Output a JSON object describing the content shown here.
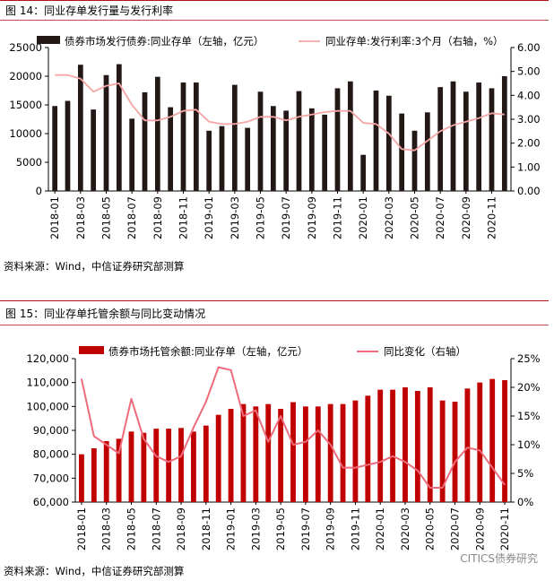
{
  "figure14": {
    "title": "图 14：同业存单发行量与发行利率",
    "source": "资料来源：Wind，中信证券研究部测算"
  },
  "figure15": {
    "title": "图 15：同业存单托管余额与同比变动情况",
    "source": "资料来源：Wind，中信证券研究部测算"
  },
  "watermark": "CITICS债券研究",
  "colors": {
    "accent_red": "#c00000",
    "dark_bar": "#231815",
    "pink_line": "#f4a6a6",
    "line15": "#ef6b7b",
    "rule": "#b5121b"
  },
  "chart_data": [
    {
      "type": "bar",
      "categories": [
        "2018-01",
        "2018-02",
        "2018-03",
        "2018-04",
        "2018-05",
        "2018-06",
        "2018-07",
        "2018-08",
        "2018-09",
        "2018-10",
        "2018-11",
        "2018-12",
        "2019-01",
        "2019-02",
        "2019-03",
        "2019-04",
        "2019-05",
        "2019-06",
        "2019-07",
        "2019-08",
        "2019-09",
        "2019-10",
        "2019-11",
        "2019-12",
        "2020-01",
        "2020-02",
        "2020-03",
        "2020-04",
        "2020-05",
        "2020-06",
        "2020-07",
        "2020-08",
        "2020-09",
        "2020-10",
        "2020-11",
        "2020-12"
      ],
      "x_tick_labels": [
        "2018-01",
        "2018-03",
        "2018-05",
        "2018-07",
        "2018-09",
        "2018-11",
        "2019-01",
        "2019-03",
        "2019-05",
        "2019-07",
        "2019-09",
        "2019-11",
        "2020-01",
        "2020-03",
        "2020-05",
        "2020-07",
        "2020-09",
        "2020-11"
      ],
      "series": [
        {
          "name": "债券市场发行债券:同业存单（左轴，亿元）",
          "axis": "left",
          "kind": "bar",
          "color": "#231815",
          "values": [
            14800,
            15700,
            22000,
            14200,
            20200,
            22100,
            12600,
            17200,
            19900,
            14600,
            18900,
            18900,
            10500,
            11300,
            18500,
            11000,
            17300,
            14800,
            14000,
            17400,
            14400,
            13300,
            17900,
            19100,
            6300,
            17500,
            16600,
            13500,
            10500,
            13700,
            18100,
            19100,
            17300,
            18900,
            17900,
            20000
          ]
        },
        {
          "name": "同业存单:发行利率:3个月（右轴，%）",
          "axis": "right",
          "kind": "line",
          "color": "#f4a6a6",
          "values": [
            4.85,
            4.85,
            4.7,
            4.15,
            4.4,
            4.5,
            3.6,
            2.95,
            2.95,
            3.1,
            3.35,
            3.4,
            2.9,
            2.8,
            2.8,
            2.9,
            3.1,
            3.1,
            2.95,
            3.1,
            3.2,
            3.3,
            3.35,
            3.35,
            2.85,
            2.8,
            2.4,
            1.75,
            1.7,
            2.1,
            2.5,
            2.75,
            2.9,
            3.05,
            3.25,
            3.2
          ]
        }
      ],
      "ylim_left": [
        0,
        25000
      ],
      "yticks_left": [
        "0",
        "5000",
        "10000",
        "15000",
        "20000",
        "25000"
      ],
      "ylim_right": [
        0,
        6
      ],
      "yticks_right": [
        "0.00",
        "1.00",
        "2.00",
        "3.00",
        "4.00",
        "5.00",
        "6.00"
      ],
      "legend_position": "top"
    },
    {
      "type": "bar",
      "categories": [
        "2018-01",
        "2018-02",
        "2018-03",
        "2018-04",
        "2018-05",
        "2018-06",
        "2018-07",
        "2018-08",
        "2018-09",
        "2018-10",
        "2018-11",
        "2018-12",
        "2019-01",
        "2019-02",
        "2019-03",
        "2019-04",
        "2019-05",
        "2019-06",
        "2019-07",
        "2019-08",
        "2019-09",
        "2019-10",
        "2019-11",
        "2019-12",
        "2020-01",
        "2020-02",
        "2020-03",
        "2020-04",
        "2020-05",
        "2020-06",
        "2020-07",
        "2020-08",
        "2020-09",
        "2020-10",
        "2020-11"
      ],
      "x_tick_labels": [
        "2018-01",
        "2018-03",
        "2018-05",
        "2018-07",
        "2018-09",
        "2018-11",
        "2019-01",
        "2019-03",
        "2019-05",
        "2019-07",
        "2019-09",
        "2019-11",
        "2020-01",
        "2020-03",
        "2020-05",
        "2020-07",
        "2020-09",
        "2020-11"
      ],
      "series": [
        {
          "name": "债券市场托管余额:同业存单（左轴，亿元）",
          "axis": "left",
          "kind": "bar",
          "color": "#c00000",
          "values": [
            80000,
            82500,
            85500,
            86500,
            89500,
            89000,
            90700,
            90700,
            91000,
            89500,
            92000,
            96500,
            99000,
            101000,
            100000,
            101000,
            99000,
            101800,
            100000,
            100000,
            101000,
            101000,
            102500,
            104500,
            107000,
            107000,
            108000,
            106500,
            108000,
            102500,
            102000,
            107500,
            110000,
            111500,
            111000
          ]
        },
        {
          "name": "同比变化（右轴）",
          "axis": "right",
          "kind": "line",
          "color": "#ef6b7b",
          "values": [
            21.5,
            11.5,
            10.0,
            8.5,
            18.0,
            11.0,
            8.0,
            7.0,
            8.0,
            13.0,
            17.5,
            23.5,
            23.0,
            15.0,
            16.0,
            10.5,
            15.0,
            10.0,
            10.5,
            12.5,
            10.0,
            6.0,
            6.0,
            6.5,
            7.0,
            8.0,
            7.0,
            5.5,
            2.5,
            2.5,
            7.0,
            9.5,
            9.0,
            6.0,
            3.0
          ]
        }
      ],
      "ylim_left": [
        60000,
        120000
      ],
      "yticks_left": [
        "60,000",
        "70,000",
        "80,000",
        "90,000",
        "100,000",
        "110,000",
        "120,000"
      ],
      "ylim_right": [
        0,
        25
      ],
      "yticks_right": [
        "0%",
        "5%",
        "10%",
        "15%",
        "20%",
        "25%"
      ],
      "legend_position": "top"
    }
  ]
}
